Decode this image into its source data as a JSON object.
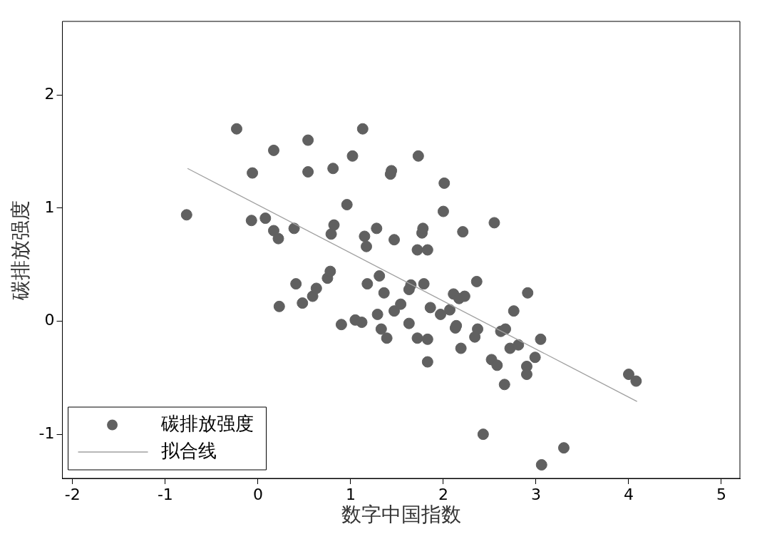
{
  "chart_data": {
    "type": "scatter",
    "xlabel": "数字中国指数",
    "ylabel": "碳排放强度",
    "xlim": [
      -2.11,
      5.2
    ],
    "ylim": [
      -1.39,
      2.65
    ],
    "xticks": [
      -2,
      -1,
      0,
      1,
      2,
      3,
      4,
      5
    ],
    "yticks": [
      -1,
      0,
      1,
      2
    ],
    "grid": false,
    "legend": "bottom left",
    "series": [
      {
        "name": "碳排放强度",
        "color": "#606060",
        "marker": "circle",
        "x": [
          -0.77,
          -0.23,
          -0.06,
          -0.07,
          0.08,
          0.17,
          0.17,
          0.22,
          0.23,
          0.39,
          0.41,
          0.54,
          0.54,
          0.48,
          0.59,
          0.63,
          0.75,
          0.78,
          0.81,
          0.82,
          0.79,
          0.9,
          0.96,
          1.02,
          1.13,
          1.05,
          1.12,
          1.15,
          1.17,
          1.18,
          1.28,
          1.29,
          1.31,
          1.33,
          1.36,
          1.39,
          1.43,
          1.44,
          1.47,
          1.47,
          1.54,
          1.63,
          1.65,
          1.63,
          1.72,
          1.73,
          1.72,
          1.77,
          1.78,
          1.79,
          1.83,
          1.83,
          1.83,
          1.86,
          1.97,
          2.0,
          2.01,
          2.07,
          2.11,
          2.13,
          2.14,
          2.17,
          2.19,
          2.21,
          2.23,
          2.36,
          2.34,
          2.37,
          2.43,
          2.52,
          2.55,
          2.58,
          2.62,
          2.66,
          2.67,
          2.72,
          2.76,
          2.81,
          2.9,
          2.9,
          2.91,
          2.99,
          3.05,
          3.06,
          3.3,
          4.0,
          4.08
        ],
        "values": [
          0.94,
          1.7,
          1.31,
          0.89,
          0.91,
          1.51,
          0.8,
          0.73,
          0.13,
          0.82,
          0.33,
          1.6,
          1.32,
          0.16,
          0.22,
          0.29,
          0.38,
          0.44,
          1.35,
          0.85,
          0.77,
          -0.03,
          1.03,
          1.46,
          1.7,
          0.01,
          -0.01,
          0.75,
          0.66,
          0.33,
          0.82,
          0.06,
          0.4,
          -0.07,
          0.25,
          -0.15,
          1.3,
          1.33,
          0.72,
          0.09,
          0.15,
          0.28,
          0.32,
          -0.02,
          0.63,
          1.46,
          -0.15,
          0.78,
          0.82,
          0.33,
          0.63,
          -0.16,
          -0.36,
          0.12,
          0.06,
          0.97,
          1.22,
          0.1,
          0.24,
          -0.06,
          -0.04,
          0.2,
          -0.24,
          0.79,
          0.22,
          0.35,
          -0.14,
          -0.07,
          -1.0,
          -0.34,
          0.87,
          -0.39,
          -0.09,
          -0.56,
          -0.07,
          -0.24,
          0.09,
          -0.21,
          -0.4,
          -0.47,
          0.25,
          -0.32,
          -0.16,
          -1.27,
          -1.12,
          -0.47,
          -0.53
        ]
      },
      {
        "name": "拟合线",
        "color": "#a0a0a0",
        "type": "line",
        "marker": "none",
        "x": [
          -0.76,
          4.09
        ],
        "values": [
          1.35,
          -0.71
        ]
      }
    ]
  }
}
